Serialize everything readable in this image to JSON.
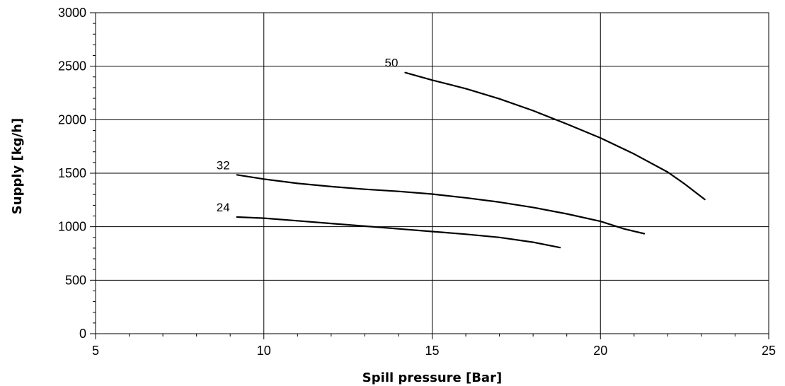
{
  "chart_data": {
    "type": "line",
    "xlabel": "Spill pressure [Bar]",
    "ylabel": "Supply [kg/h]",
    "xlim": [
      5,
      25
    ],
    "ylim": [
      0,
      3000
    ],
    "x_ticks": [
      5,
      10,
      15,
      20,
      25
    ],
    "y_ticks": [
      0,
      500,
      1000,
      1500,
      2000,
      2500,
      3000
    ],
    "x_tick_labels": [
      "5",
      "10",
      "15",
      "20",
      "25"
    ],
    "y_tick_labels": [
      "0",
      "500",
      "1000",
      "1500",
      "2000",
      "2500",
      "3000"
    ],
    "x_minor_step": 1,
    "y_minor_step": 100,
    "grid": true,
    "colors": {
      "line": "#000000",
      "grid": "#000000",
      "background": "#ffffff"
    },
    "series": [
      {
        "name": "50",
        "x": [
          14.2,
          15.0,
          16.0,
          17.0,
          18.0,
          19.0,
          20.0,
          21.0,
          22.0,
          22.5,
          23.1
        ],
        "y": [
          2440,
          2370,
          2290,
          2195,
          2085,
          1960,
          1830,
          1680,
          1510,
          1400,
          1255
        ]
      },
      {
        "name": "32",
        "x": [
          9.2,
          10.0,
          11.0,
          12.0,
          13.0,
          14.0,
          15.0,
          16.0,
          17.0,
          18.0,
          19.0,
          20.0,
          20.7,
          21.3
        ],
        "y": [
          1485,
          1445,
          1405,
          1375,
          1350,
          1330,
          1305,
          1270,
          1230,
          1180,
          1120,
          1050,
          980,
          935
        ]
      },
      {
        "name": "24",
        "x": [
          9.2,
          10.0,
          11.0,
          12.0,
          13.0,
          14.0,
          15.0,
          16.0,
          17.0,
          18.0,
          18.8
        ],
        "y": [
          1090,
          1080,
          1055,
          1030,
          1005,
          980,
          955,
          930,
          900,
          855,
          805
        ]
      }
    ]
  }
}
